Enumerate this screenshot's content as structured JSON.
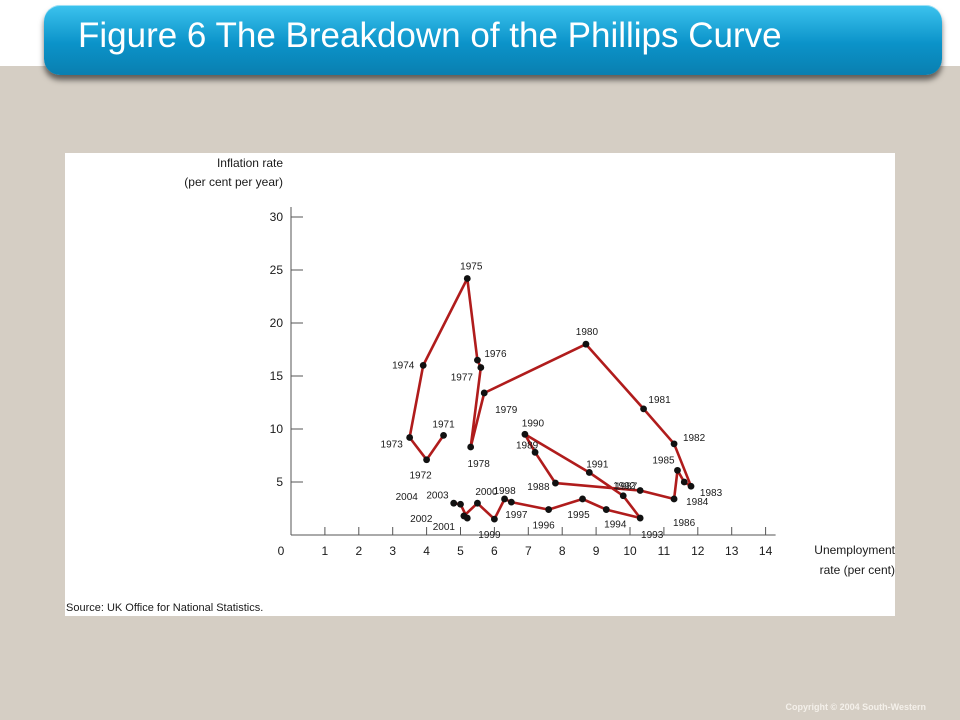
{
  "slide": {
    "title": "Figure 6 The Breakdown of the Phillips Curve",
    "copyright": "Copyright © 2004  South-Western"
  },
  "colors": {
    "title_bar": "#0b93c9",
    "background": "#d5cec4",
    "line": "#b01c1c",
    "point": "#111111"
  },
  "chart_data": {
    "type": "line",
    "title": "",
    "ylabel": "Inflation rate",
    "ylabel_sub": "(per cent per year)",
    "xlabel": "Unemployment",
    "xlabel_sub": "rate (per cent)",
    "source": "Source: UK Office for National Statistics.",
    "xlim": [
      0,
      14
    ],
    "ylim": [
      0,
      30
    ],
    "xticks": [
      0,
      1,
      2,
      3,
      4,
      5,
      6,
      7,
      8,
      9,
      10,
      11,
      12,
      13,
      14
    ],
    "yticks": [
      5,
      10,
      15,
      20,
      25,
      30
    ],
    "grid": false,
    "points": [
      {
        "year": "1971",
        "x": 4.5,
        "y": 9.4
      },
      {
        "year": "1972",
        "x": 4.0,
        "y": 7.1
      },
      {
        "year": "1973",
        "x": 3.5,
        "y": 9.2
      },
      {
        "year": "1974",
        "x": 3.9,
        "y": 16.0
      },
      {
        "year": "1975",
        "x": 5.2,
        "y": 24.2
      },
      {
        "year": "1976",
        "x": 5.5,
        "y": 16.5
      },
      {
        "year": "1977",
        "x": 5.6,
        "y": 15.8
      },
      {
        "year": "1978",
        "x": 5.3,
        "y": 8.3
      },
      {
        "year": "1979",
        "x": 5.7,
        "y": 13.4
      },
      {
        "year": "1980",
        "x": 8.7,
        "y": 18.0
      },
      {
        "year": "1981",
        "x": 10.4,
        "y": 11.9
      },
      {
        "year": "1982",
        "x": 11.3,
        "y": 8.6
      },
      {
        "year": "1983",
        "x": 11.8,
        "y": 4.6
      },
      {
        "year": "1984",
        "x": 11.6,
        "y": 5.0
      },
      {
        "year": "1985",
        "x": 11.4,
        "y": 6.1
      },
      {
        "year": "1986",
        "x": 11.3,
        "y": 3.4
      },
      {
        "year": "1987",
        "x": 10.3,
        "y": 4.2
      },
      {
        "year": "1988",
        "x": 7.8,
        "y": 4.9
      },
      {
        "year": "1989",
        "x": 7.2,
        "y": 7.8
      },
      {
        "year": "1990",
        "x": 6.9,
        "y": 9.5
      },
      {
        "year": "1991",
        "x": 8.8,
        "y": 5.9
      },
      {
        "year": "1992",
        "x": 9.8,
        "y": 3.7
      },
      {
        "year": "1993",
        "x": 10.3,
        "y": 1.6
      },
      {
        "year": "1994",
        "x": 9.3,
        "y": 2.4
      },
      {
        "year": "1995",
        "x": 8.6,
        "y": 3.4
      },
      {
        "year": "1996",
        "x": 7.6,
        "y": 2.4
      },
      {
        "year": "1997",
        "x": 6.5,
        "y": 3.1
      },
      {
        "year": "1998",
        "x": 6.3,
        "y": 3.4
      },
      {
        "year": "1999",
        "x": 6.0,
        "y": 1.5
      },
      {
        "year": "2000",
        "x": 5.5,
        "y": 3.0
      },
      {
        "year": "2001",
        "x": 5.1,
        "y": 1.8
      },
      {
        "year": "2002",
        "x": 5.2,
        "y": 1.6
      },
      {
        "year": "2003",
        "x": 5.0,
        "y": 2.9
      },
      {
        "year": "2004",
        "x": 4.8,
        "y": 3.0
      }
    ],
    "path_order": [
      "1971",
      "1972",
      "1973",
      "1974",
      "1975",
      "1976",
      "1977",
      "1978",
      "1979",
      "1980",
      "1981",
      "1982",
      "1983",
      "1984",
      "1985",
      "1986",
      "1987",
      "1988",
      "1989",
      "1990",
      "1991",
      "1992",
      "1993",
      "1994",
      "1995",
      "1996",
      "1997",
      "1998",
      "1999",
      "2000",
      "2001",
      "2002",
      "2003",
      "2004"
    ]
  }
}
